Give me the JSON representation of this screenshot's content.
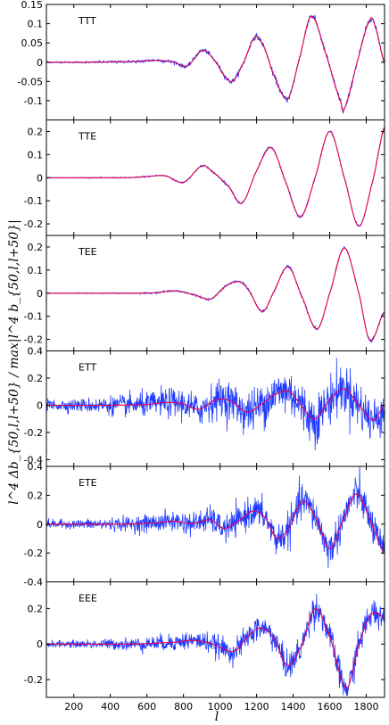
{
  "ylabel": "l^4 Δb_{50,l,l+50} / max|l^4 b_{50,l,l+50}|",
  "chart_data": {
    "type": "line",
    "xlabel": "l",
    "xlim": [
      50,
      1900
    ],
    "xticks": [
      200,
      400,
      600,
      800,
      1000,
      1200,
      1400,
      1600,
      1800
    ],
    "colors": {
      "simulated": "#1f3bff",
      "theory": "#e8004c"
    },
    "panels": [
      {
        "label": "TTT",
        "ylim": [
          -0.15,
          0.15
        ],
        "yticks": [
          -0.1,
          -0.05,
          0,
          0.05,
          0.1,
          0.15
        ],
        "ytick_labels": [
          "-0.1",
          "-0.05",
          "0",
          "0.05",
          "0.1",
          "0.15"
        ],
        "theory": {
          "x": [
            50,
            300,
            550,
            650,
            750,
            820,
            900,
            960,
            1060,
            1130,
            1190,
            1240,
            1290,
            1370,
            1440,
            1500,
            1580,
            1660,
            1680,
            1750,
            1820,
            1850,
            1900
          ],
          "y": [
            0,
            0,
            0.002,
            0.005,
            0,
            -0.01,
            0.03,
            0.01,
            -0.05,
            0.0,
            0.065,
            0.04,
            -0.03,
            -0.095,
            0.02,
            0.12,
            0.02,
            -0.1,
            -0.12,
            0.0,
            0.11,
            0.09,
            0.0
          ]
        },
        "noise": 0.004
      },
      {
        "label": "TTE",
        "ylim": [
          -0.25,
          0.25
        ],
        "yticks": [
          -0.2,
          -0.1,
          0,
          0.1,
          0.2
        ],
        "ytick_labels": [
          "-0.2",
          "-0.1",
          "0",
          "0.1",
          "0.2"
        ],
        "theory": {
          "x": [
            50,
            500,
            600,
            700,
            800,
            900,
            950,
            1050,
            1120,
            1200,
            1280,
            1360,
            1440,
            1520,
            1600,
            1680,
            1760,
            1840,
            1900
          ],
          "y": [
            0,
            0,
            0.005,
            0.008,
            -0.02,
            0.05,
            0.03,
            -0.04,
            -0.11,
            0.03,
            0.13,
            -0.02,
            -0.17,
            0.0,
            0.2,
            0.0,
            -0.21,
            0.0,
            0.22
          ]
        },
        "noise": 0.003
      },
      {
        "label": "TEE",
        "ylim": [
          -0.25,
          0.25
        ],
        "yticks": [
          -0.2,
          -0.1,
          0,
          0.1,
          0.2
        ],
        "ytick_labels": [
          "-0.2",
          "-0.1",
          "0",
          "0.1",
          "0.2"
        ],
        "theory": {
          "x": [
            50,
            550,
            650,
            750,
            850,
            950,
            1030,
            1100,
            1150,
            1230,
            1290,
            1370,
            1440,
            1530,
            1600,
            1680,
            1760,
            1820,
            1900
          ],
          "y": [
            0,
            0,
            0.002,
            0.01,
            -0.005,
            -0.025,
            0.03,
            0.05,
            0.02,
            -0.08,
            0.0,
            0.115,
            0.0,
            -0.155,
            0.0,
            0.195,
            0.0,
            -0.205,
            -0.08
          ]
        },
        "noise": 0.003
      },
      {
        "label": "ETT",
        "ylim": [
          -0.45,
          0.4
        ],
        "yticks": [
          -0.4,
          -0.2,
          0,
          0.2,
          0.4
        ],
        "ytick_labels": [
          "-0.4",
          "-0.2",
          "0",
          "0.2",
          "0.4"
        ],
        "theory": {
          "x": [
            50,
            400,
            600,
            700,
            800,
            880,
            980,
            1060,
            1150,
            1240,
            1300,
            1380,
            1460,
            1520,
            1600,
            1680,
            1760,
            1840,
            1900
          ],
          "y": [
            0,
            0,
            0.005,
            0.02,
            0.01,
            -0.03,
            0.04,
            0.03,
            -0.05,
            0.02,
            0.08,
            0.1,
            -0.03,
            -0.1,
            0.04,
            0.12,
            0.0,
            -0.11,
            0.0
          ]
        },
        "noise": 0.09
      },
      {
        "label": "ETE",
        "ylim": [
          -0.4,
          0.4
        ],
        "yticks": [
          -0.4,
          -0.2,
          0,
          0.2,
          0.4
        ],
        "ytick_labels": [
          "-0.4",
          "-0.2",
          "0",
          "0.2",
          "0.4"
        ],
        "theory": {
          "x": [
            50,
            500,
            650,
            750,
            850,
            950,
            1020,
            1100,
            1180,
            1250,
            1310,
            1380,
            1450,
            1530,
            1600,
            1680,
            1750,
            1830,
            1900
          ],
          "y": [
            0,
            0,
            0.01,
            0.02,
            0.005,
            0.03,
            -0.03,
            0.02,
            0.09,
            0.04,
            -0.1,
            -0.02,
            0.16,
            0.03,
            -0.17,
            0.05,
            0.21,
            0.0,
            -0.2
          ]
        },
        "noise": 0.06
      },
      {
        "label": "EEE",
        "ylim": [
          -0.3,
          0.35
        ],
        "yticks": [
          -0.2,
          0,
          0.2
        ],
        "ytick_labels": [
          "-0.2",
          "0",
          "0.2"
        ],
        "theory": {
          "x": [
            50,
            550,
            650,
            750,
            850,
            950,
            1000,
            1080,
            1150,
            1220,
            1290,
            1370,
            1450,
            1520,
            1600,
            1690,
            1760,
            1830,
            1900
          ],
          "y": [
            0,
            0,
            0.005,
            0.01,
            0.02,
            0.005,
            -0.02,
            -0.04,
            0.04,
            0.09,
            0.04,
            -0.12,
            0.0,
            0.2,
            0.04,
            -0.25,
            0.0,
            0.17,
            0.15
          ]
        },
        "noise": 0.04
      }
    ]
  }
}
